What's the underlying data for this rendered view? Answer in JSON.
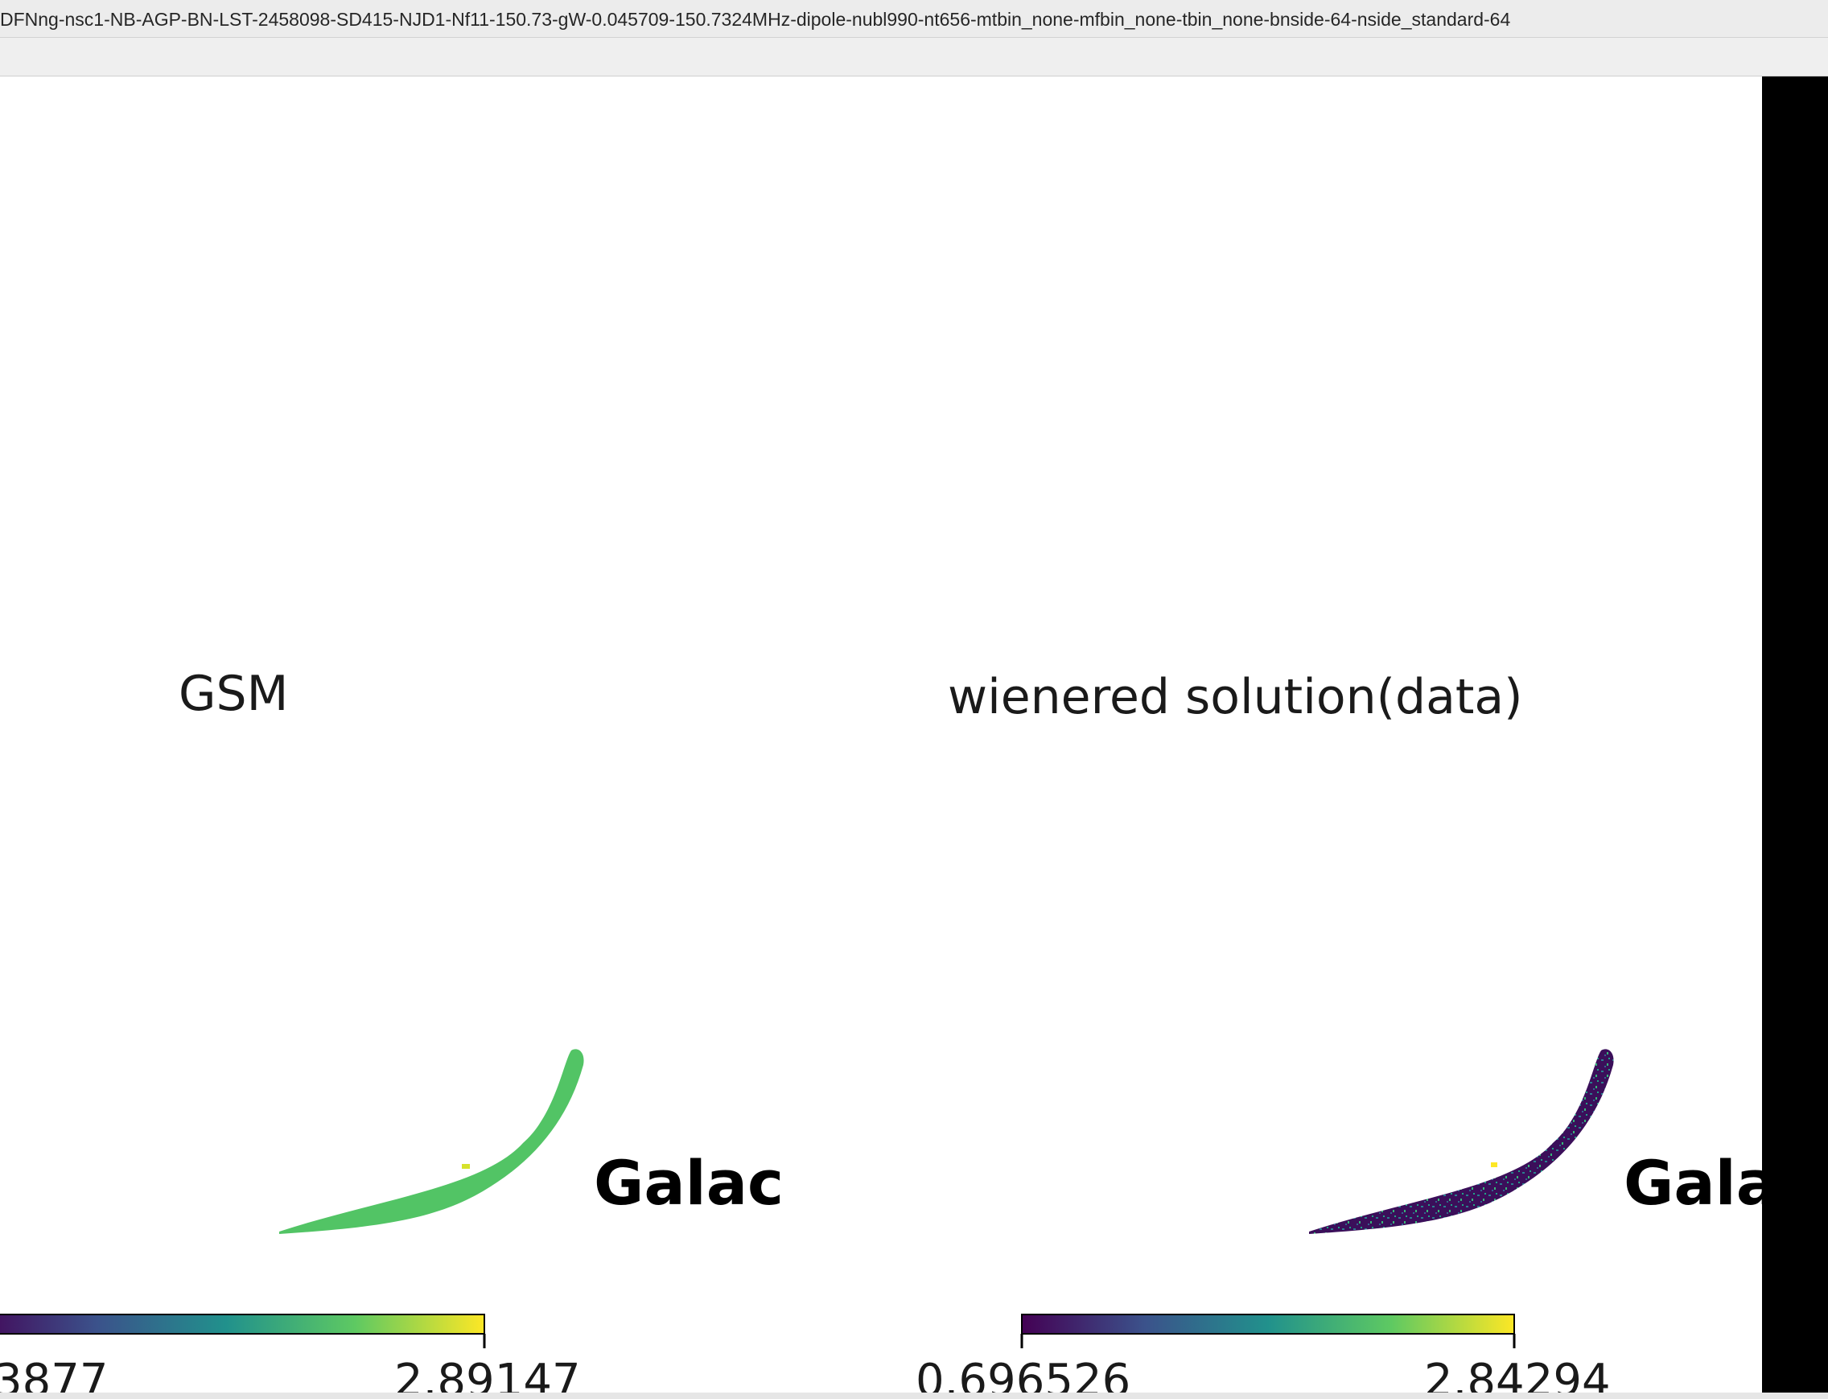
{
  "window": {
    "title": "DFNng-nsc1-NB-AGP-BN-LST-2458098-SD415-NJD1-Nf11-150.73-gW-0.045709-150.7324MHz-dipole-nubl990-nt656-mtbin_none-mfbin_none-tbin_none-bnside-64-nside_standard-64"
  },
  "panels": [
    {
      "title": "GSM",
      "side_label": "Galac",
      "colorbar": {
        "min_label": "3877",
        "max_label": "2.89147",
        "colormap": "viridis"
      }
    },
    {
      "title": "wienered solution(data)",
      "side_label": "Gala",
      "colorbar": {
        "min_label": "0.696526",
        "max_label": "2.84294",
        "colormap": "viridis"
      }
    }
  ],
  "colors": {
    "viridis": [
      "#440154",
      "#3b528b",
      "#21918c",
      "#5ec962",
      "#fde725"
    ],
    "gsm_fill": "#52c465",
    "solution_fill": "#3b0f5a"
  }
}
